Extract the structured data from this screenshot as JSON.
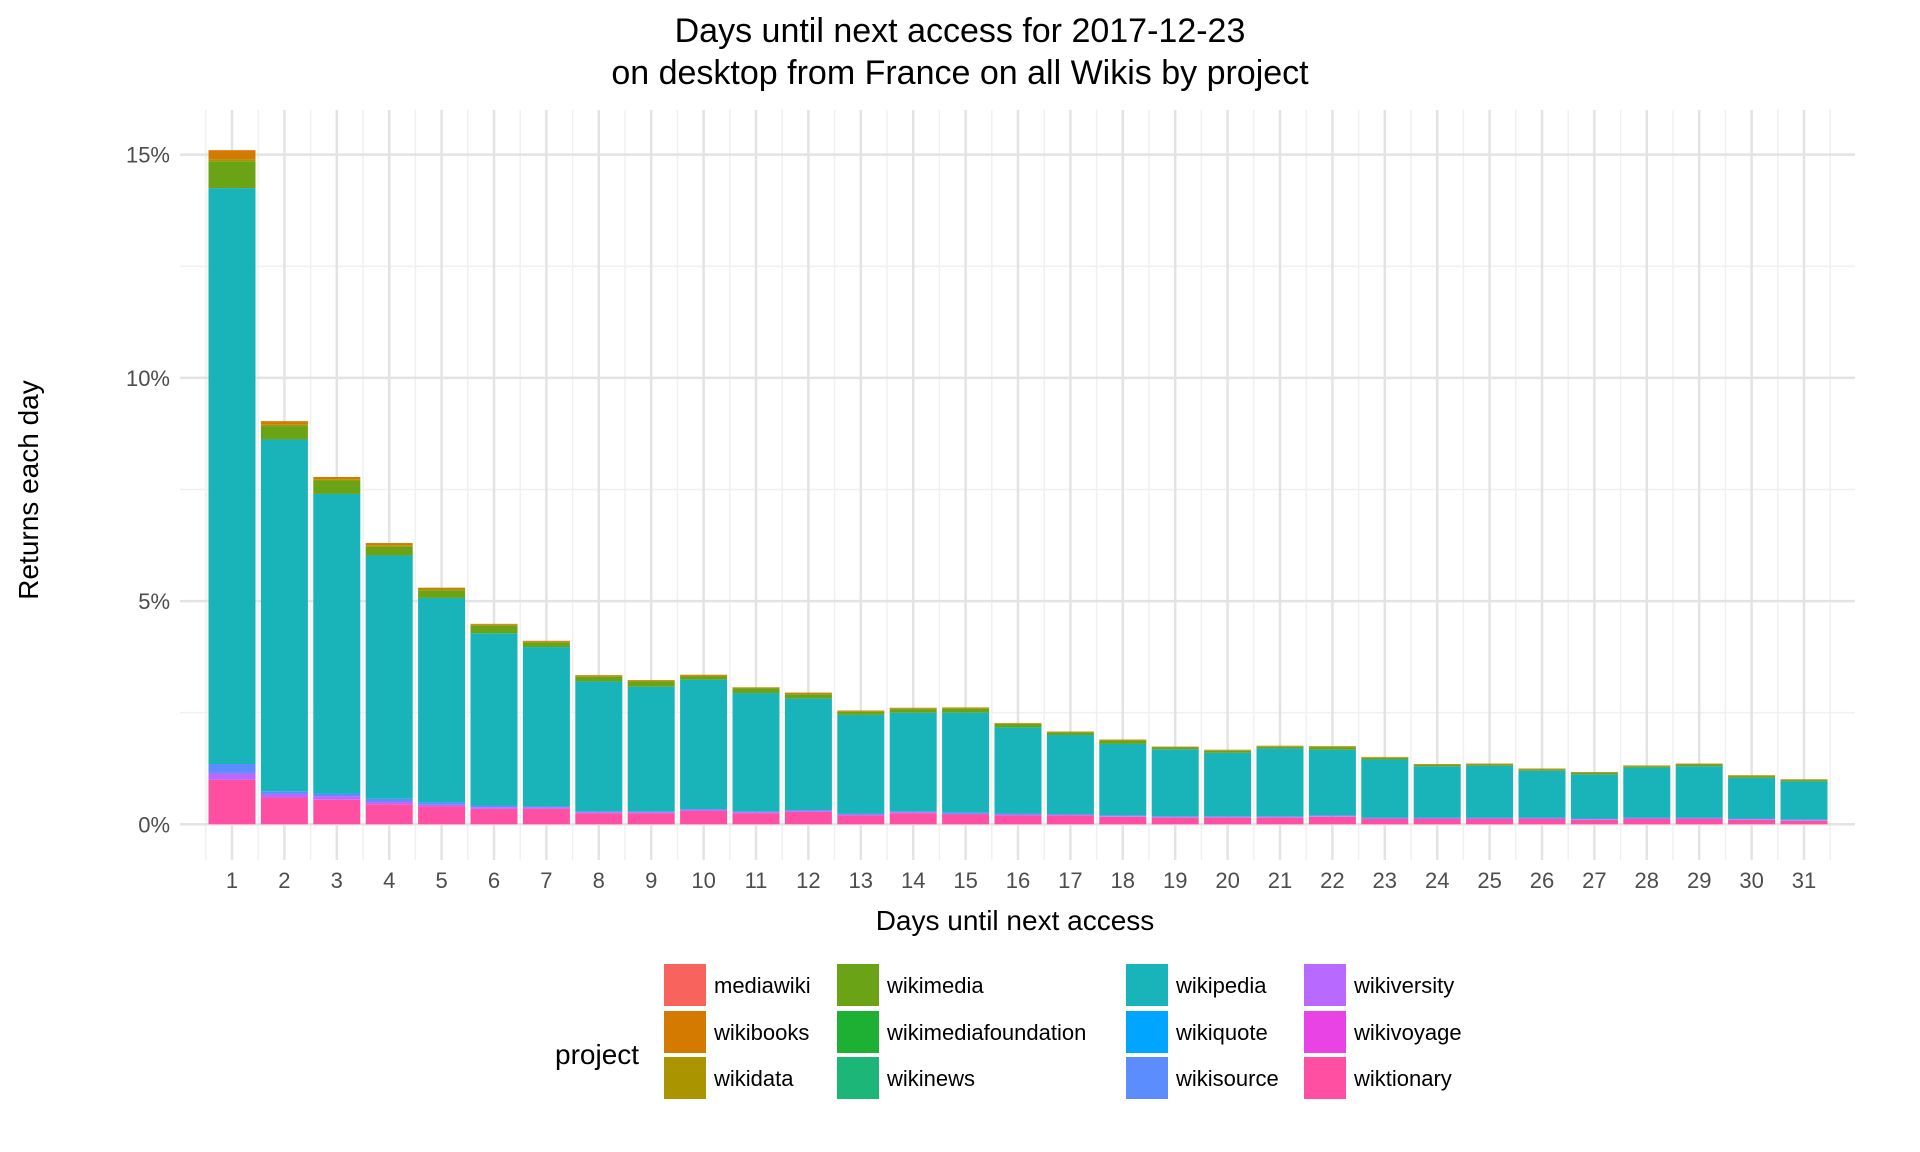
{
  "chart_data": {
    "type": "bar",
    "stacked": true,
    "title": [
      "Days until next access for 2017-12-23",
      "on desktop from France on all Wikis by project"
    ],
    "xlabel": "Days until next access",
    "ylabel": "Returns each day",
    "ylim": [
      -0.8,
      16.0
    ],
    "y_ticks": [
      0,
      5,
      10,
      15
    ],
    "y_tick_labels": [
      "0%",
      "5%",
      "10%",
      "15%"
    ],
    "categories": [
      "1",
      "2",
      "3",
      "4",
      "5",
      "6",
      "7",
      "8",
      "9",
      "10",
      "11",
      "12",
      "13",
      "14",
      "15",
      "16",
      "17",
      "18",
      "19",
      "20",
      "21",
      "22",
      "23",
      "24",
      "25",
      "26",
      "27",
      "28",
      "29",
      "30",
      "31"
    ],
    "legend_title": "project",
    "legend_position": "bottom",
    "grid": true,
    "series": [
      {
        "name": "wiktionary",
        "color": "#FF4FA2",
        "values": [
          1.0,
          0.6,
          0.55,
          0.45,
          0.4,
          0.35,
          0.35,
          0.25,
          0.25,
          0.3,
          0.25,
          0.28,
          0.2,
          0.25,
          0.22,
          0.2,
          0.2,
          0.17,
          0.15,
          0.15,
          0.15,
          0.17,
          0.12,
          0.12,
          0.12,
          0.12,
          0.1,
          0.12,
          0.12,
          0.1,
          0.08
        ]
      },
      {
        "name": "wikivoyage",
        "color": "#E943E6",
        "values": [
          0,
          0,
          0,
          0,
          0,
          0,
          0,
          0,
          0,
          0,
          0,
          0,
          0,
          0,
          0,
          0,
          0,
          0,
          0,
          0,
          0,
          0,
          0,
          0,
          0,
          0,
          0,
          0,
          0,
          0,
          0
        ]
      },
      {
        "name": "wikiversity",
        "color": "#B869FF",
        "values": [
          0.15,
          0.08,
          0.08,
          0.06,
          0.04,
          0.03,
          0.03,
          0.02,
          0.02,
          0.02,
          0.02,
          0.02,
          0.02,
          0.02,
          0.02,
          0.02,
          0.01,
          0.01,
          0.01,
          0.01,
          0.01,
          0.01,
          0.01,
          0.01,
          0.01,
          0.01,
          0.01,
          0.01,
          0.01,
          0.01,
          0.01
        ]
      },
      {
        "name": "wikisource",
        "color": "#5B8DFF",
        "values": [
          0.2,
          0.06,
          0.06,
          0.06,
          0.05,
          0.04,
          0.02,
          0.02,
          0.02,
          0.02,
          0.02,
          0.02,
          0.02,
          0.02,
          0.02,
          0.02,
          0.02,
          0.02,
          0.02,
          0.02,
          0.02,
          0.02,
          0.02,
          0.02,
          0.02,
          0.02,
          0.02,
          0.02,
          0.02,
          0.02,
          0.02
        ]
      },
      {
        "name": "wikiquote",
        "color": "#00A5FF",
        "values": [
          0,
          0,
          0,
          0,
          0,
          0,
          0,
          0,
          0,
          0,
          0,
          0,
          0,
          0,
          0,
          0,
          0,
          0,
          0,
          0,
          0,
          0,
          0,
          0,
          0,
          0,
          0,
          0,
          0,
          0,
          0
        ]
      },
      {
        "name": "wikipedia",
        "color": "#19B4B9",
        "values": [
          12.9,
          7.88,
          6.71,
          5.45,
          4.58,
          3.86,
          3.57,
          2.91,
          2.79,
          2.9,
          2.65,
          2.5,
          2.21,
          2.21,
          2.24,
          1.93,
          1.77,
          1.6,
          1.5,
          1.42,
          1.52,
          1.47,
          1.3,
          1.15,
          1.16,
          1.05,
          0.99,
          1.12,
          1.15,
          0.91,
          0.85
        ]
      },
      {
        "name": "wikinews",
        "color": "#1CB679",
        "values": [
          0,
          0,
          0,
          0,
          0,
          0,
          0,
          0,
          0,
          0,
          0,
          0,
          0,
          0,
          0,
          0,
          0,
          0,
          0,
          0,
          0,
          0,
          0,
          0,
          0,
          0,
          0,
          0,
          0,
          0,
          0
        ]
      },
      {
        "name": "wikimediafoundation",
        "color": "#1DB033",
        "values": [
          0,
          0,
          0,
          0,
          0,
          0,
          0,
          0,
          0,
          0,
          0,
          0,
          0,
          0,
          0,
          0,
          0,
          0,
          0,
          0,
          0,
          0,
          0,
          0,
          0,
          0,
          0,
          0,
          0,
          0,
          0
        ]
      },
      {
        "name": "wikimedia",
        "color": "#6BA317",
        "values": [
          0.6,
          0.3,
          0.3,
          0.2,
          0.17,
          0.17,
          0.1,
          0.1,
          0.12,
          0.07,
          0.1,
          0.09,
          0.07,
          0.08,
          0.09,
          0.08,
          0.06,
          0.08,
          0.04,
          0.05,
          0.04,
          0.06,
          0.04,
          0.03,
          0.03,
          0.03,
          0.03,
          0.03,
          0.04,
          0.04,
          0.03
        ]
      },
      {
        "name": "wikidata",
        "color": "#AA9500",
        "values": [
          0.05,
          0.04,
          0.03,
          0.03,
          0.03,
          0.02,
          0.02,
          0.02,
          0.02,
          0.02,
          0.02,
          0.02,
          0.02,
          0.02,
          0.02,
          0.01,
          0.01,
          0.01,
          0.01,
          0.01,
          0.01,
          0.01,
          0.01,
          0.01,
          0.01,
          0.01,
          0.01,
          0.01,
          0.01,
          0.01,
          0.01
        ]
      },
      {
        "name": "wikibooks",
        "color": "#D57A00",
        "values": [
          0.2,
          0.07,
          0.05,
          0.05,
          0.03,
          0.02,
          0.02,
          0.02,
          0.01,
          0.02,
          0.01,
          0.02,
          0.01,
          0.01,
          0.01,
          0.01,
          0.01,
          0.01,
          0.01,
          0.01,
          0.01,
          0.01,
          0.01,
          0.01,
          0.01,
          0.01,
          0.01,
          0.01,
          0.01,
          0.01,
          0.01
        ]
      },
      {
        "name": "mediawiki",
        "color": "#F8645D",
        "values": [
          0,
          0,
          0,
          0,
          0,
          0,
          0,
          0,
          0,
          0,
          0,
          0,
          0,
          0,
          0,
          0,
          0,
          0,
          0,
          0,
          0,
          0,
          0,
          0,
          0,
          0,
          0,
          0,
          0,
          0,
          0
        ]
      }
    ],
    "legend_entries": [
      {
        "name": "mediawiki",
        "color": "#F8645D"
      },
      {
        "name": "wikibooks",
        "color": "#D57A00"
      },
      {
        "name": "wikidata",
        "color": "#AA9500"
      },
      {
        "name": "wikimedia",
        "color": "#6BA317"
      },
      {
        "name": "wikimediafoundation",
        "color": "#1DB033"
      },
      {
        "name": "wikinews",
        "color": "#1CB679"
      },
      {
        "name": "wikipedia",
        "color": "#19B4B9"
      },
      {
        "name": "wikiquote",
        "color": "#00A5FF"
      },
      {
        "name": "wikisource",
        "color": "#5B8DFF"
      },
      {
        "name": "wikiversity",
        "color": "#B869FF"
      },
      {
        "name": "wikivoyage",
        "color": "#E943E6"
      },
      {
        "name": "wiktionary",
        "color": "#FF4FA2"
      }
    ]
  }
}
